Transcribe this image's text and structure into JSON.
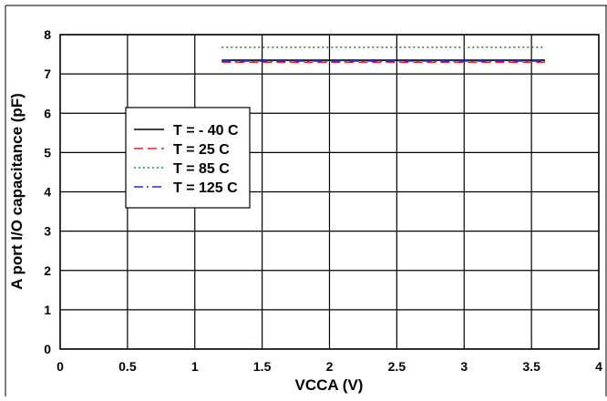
{
  "chart_data": {
    "type": "line",
    "xlabel": "VCCA (V)",
    "ylabel": "A port I/O capacitance (pF)",
    "xlim": [
      0,
      4
    ],
    "ylim": [
      0,
      8
    ],
    "x_ticks": [
      "0",
      "0.5",
      "1",
      "1.5",
      "2",
      "2.5",
      "3",
      "3.5",
      "4"
    ],
    "y_ticks": [
      "0",
      "1",
      "2",
      "3",
      "4",
      "5",
      "6",
      "7",
      "8"
    ],
    "grid": true,
    "legend_position": "middle-left",
    "series": [
      {
        "name": "T = - 40 C",
        "color": "#000000",
        "dash": "solid",
        "x": [
          1.2,
          3.6
        ],
        "y": [
          7.35,
          7.35
        ]
      },
      {
        "name": "T = 25 C",
        "color": "#e8202a",
        "dash": "dashed",
        "x": [
          1.2,
          3.6
        ],
        "y": [
          7.3,
          7.3
        ]
      },
      {
        "name": "T = 85 C",
        "color": "#2e8b2e",
        "dash": "dotted",
        "x": [
          1.2,
          3.6
        ],
        "y": [
          7.68,
          7.68
        ]
      },
      {
        "name": "T = 125 C",
        "color": "#1f2fd0",
        "dash": "dashdot",
        "x": [
          1.2,
          3.6
        ],
        "y": [
          7.33,
          7.33
        ]
      }
    ]
  }
}
